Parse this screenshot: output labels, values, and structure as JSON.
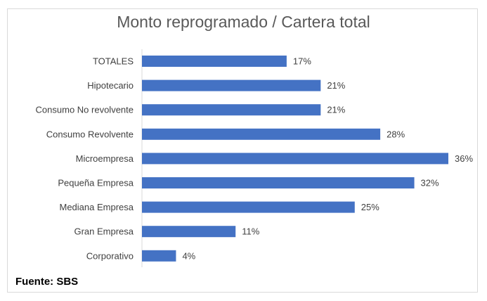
{
  "chart_data": {
    "type": "bar",
    "orientation": "horizontal",
    "title": "Monto reprogramado / Cartera total",
    "categories": [
      "TOTALES",
      "Hipotecario",
      "Consumo No revolvente",
      "Consumo Revolvente",
      "Microempresa",
      "Pequeña Empresa",
      "Mediana Empresa",
      "Gran Empresa",
      "Corporativo"
    ],
    "values": [
      17,
      21,
      21,
      28,
      36,
      32,
      25,
      11,
      4
    ],
    "value_labels": [
      "17%",
      "21%",
      "21%",
      "28%",
      "36%",
      "32%",
      "25%",
      "11%",
      "4%"
    ],
    "xlim": [
      0,
      36
    ],
    "bar_color": "#4472c4"
  },
  "source": "Fuente: SBS"
}
